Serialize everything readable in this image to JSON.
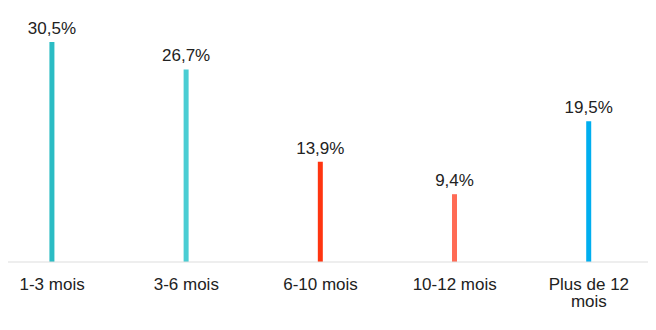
{
  "chart_data": {
    "type": "bar",
    "categories": [
      "1-3 mois",
      "3-6 mois",
      "6-10 mois",
      "10-12 mois",
      "Plus de 12 mois"
    ],
    "values": [
      30.5,
      26.7,
      13.9,
      9.4,
      19.5
    ],
    "value_labels": [
      "30,5%",
      "26,7%",
      "13,9%",
      "9,4%",
      "19,5%"
    ],
    "colors": [
      "#2bbcc4",
      "#4acdd3",
      "#ff3510",
      "#ff6b55",
      "#00aeef"
    ],
    "ylim": [
      0,
      30.5
    ],
    "grid": false,
    "data_labels": true,
    "tick_labels": "x"
  }
}
